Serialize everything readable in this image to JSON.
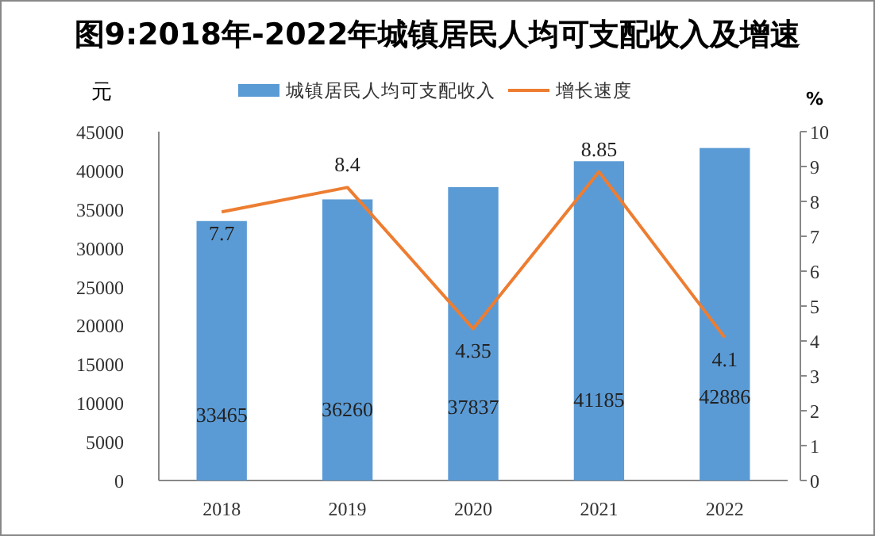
{
  "chart_data": {
    "type": "bar",
    "title": "图9:2018年-2022年城镇居民人均可支配收入及增速",
    "ylabel": "元",
    "y2label": "%",
    "categories": [
      "2018",
      "2019",
      "2020",
      "2021",
      "2022"
    ],
    "series": [
      {
        "name": "城镇居民人均可支配收入",
        "color": "#5b9bd5",
        "values": [
          33465,
          36260,
          37837,
          41185,
          42886
        ]
      },
      {
        "name": "增长速度",
        "type": "line",
        "axis": "y2",
        "color": "#ed7d31",
        "values": [
          7.7,
          8.4,
          4.35,
          8.85,
          4.1
        ]
      }
    ],
    "ylim": [
      0,
      45000
    ],
    "yticks": [
      0,
      5000,
      10000,
      15000,
      20000,
      25000,
      30000,
      35000,
      40000,
      45000
    ],
    "y2lim": [
      0,
      10
    ],
    "y2ticks": [
      0,
      1,
      2,
      3,
      4,
      5,
      6,
      7,
      8,
      9,
      10
    ],
    "data_labels": true,
    "legend": "top",
    "grid": false,
    "marker": "none",
    "line_style": "solid"
  }
}
